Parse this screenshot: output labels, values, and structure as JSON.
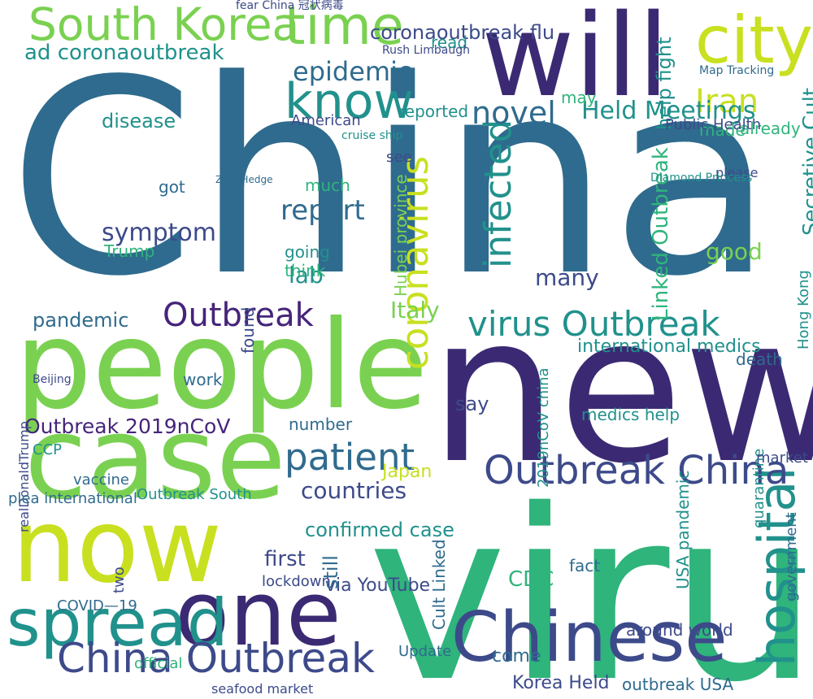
{
  "palette": {
    "navy": "#3b2a73",
    "indigo": "#3d4a8a",
    "blue": "#2f6b8e",
    "teal": "#21918c",
    "green": "#2fb47c",
    "lime": "#7ad151",
    "yellow": "#c8e020",
    "purple": "#46247a"
  },
  "words": [
    "China",
    "new",
    "virus",
    "people",
    "case",
    "will",
    "now",
    "one",
    "Chinese",
    "spread",
    "time",
    "city",
    "know",
    "hospital",
    "South Korea",
    "China Outbreak",
    "Outbreak China",
    "virus Outbreak",
    "coronavirus",
    "infected",
    "patient",
    "Outbreak",
    "novel",
    "Iran",
    "epidemic",
    "Held Meetings",
    "symptom",
    "report",
    "countries",
    "pandemic",
    "Italy",
    "confirmed case",
    "ad coronaoutbreak",
    "coronaoutbreak flu",
    "Outbreak 2019nCoV",
    "Linked Outbreak",
    "help fight",
    "good",
    "Trump",
    "via YouTube",
    "Secretive Cult",
    "disease",
    "still",
    "lab",
    "CDC",
    "first",
    "Korea Held",
    "Hubei province",
    "many",
    "say",
    "Japan",
    "work",
    "death",
    "lockdown",
    "around world",
    "USA pandemic",
    "international medics",
    "2019nCoV china",
    "outbreak USA",
    "Cult Linked",
    "medics help",
    "government",
    "quarantine",
    "Hong Kong",
    "come",
    "going",
    "think",
    "American",
    "made",
    "already",
    "see",
    "read",
    "reported",
    "may",
    "much",
    "got",
    "fact",
    "number",
    "found",
    "Update",
    "official",
    "two",
    "market",
    "please",
    "realDonaldTrump",
    "plea international",
    "Outbreak South",
    "vaccine",
    "CCP",
    "COVID—19",
    "Public Health",
    "Zero Hedge",
    "Rush Limbaugh",
    "cruise ship",
    "Diamond Princess",
    "Map Tracking",
    "Beijing",
    "seafood market",
    "fear China 冠状病毒"
  ]
}
